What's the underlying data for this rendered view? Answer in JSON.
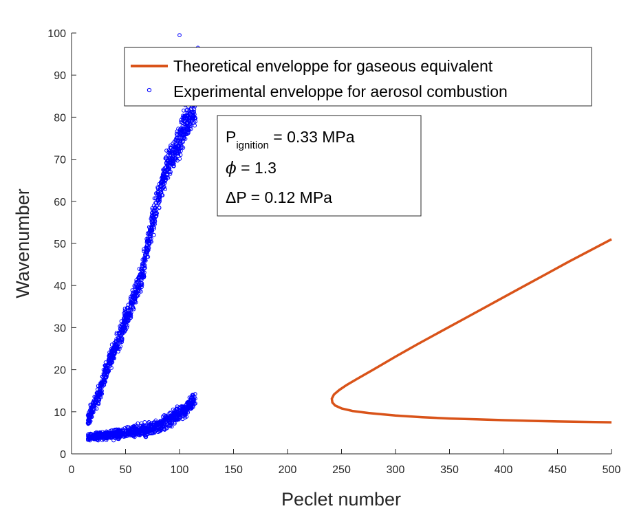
{
  "chart_data": {
    "type": "scatter",
    "xlabel": "Peclet number",
    "ylabel": "Wavenumber",
    "xlim": [
      0,
      500
    ],
    "ylim": [
      0,
      100
    ],
    "xticks": [
      "0",
      "50",
      "100",
      "150",
      "200",
      "250",
      "300",
      "350",
      "400",
      "450",
      "500"
    ],
    "yticks": [
      "0",
      "10",
      "20",
      "30",
      "40",
      "50",
      "60",
      "70",
      "80",
      "90",
      "100"
    ],
    "grid": false,
    "legend_position": "top",
    "colors": {
      "theoretical": "#d95319",
      "experimental": "#0000ff",
      "axis": "#262626"
    },
    "series": [
      {
        "name": "Theoretical enveloppe for gaseous equivalent",
        "kind": "line",
        "points": [
          [
            500,
            51
          ],
          [
            480,
            48.3
          ],
          [
            460,
            45.6
          ],
          [
            440,
            42.8
          ],
          [
            420,
            40.0
          ],
          [
            400,
            37.2
          ],
          [
            380,
            34.4
          ],
          [
            360,
            31.6
          ],
          [
            340,
            28.8
          ],
          [
            320,
            26.0
          ],
          [
            300,
            23.1
          ],
          [
            280,
            20.1
          ],
          [
            265,
            17.9
          ],
          [
            255,
            16.4
          ],
          [
            248,
            15.2
          ],
          [
            243,
            14.1
          ],
          [
            241,
            13.1
          ],
          [
            241.5,
            12.2
          ],
          [
            244,
            11.5
          ],
          [
            250,
            10.8
          ],
          [
            260,
            10.2
          ],
          [
            275,
            9.7
          ],
          [
            300,
            9.1
          ],
          [
            325,
            8.7
          ],
          [
            350,
            8.4
          ],
          [
            375,
            8.2
          ],
          [
            400,
            8.0
          ],
          [
            425,
            7.85
          ],
          [
            450,
            7.7
          ],
          [
            475,
            7.6
          ],
          [
            500,
            7.5
          ]
        ]
      },
      {
        "name": "Experimental enveloppe for aerosol combustion",
        "kind": "scatter",
        "clusters": [
          {
            "x_range": [
              15,
              115
            ],
            "trend": [
              [
                15,
                4.0
              ],
              [
                40,
                4.5
              ],
              [
                60,
                5.5
              ],
              [
                75,
                6.0
              ],
              [
                90,
                8.0
              ],
              [
                105,
                10.5
              ],
              [
                115,
                13.0
              ]
            ],
            "spread": 2.0,
            "count": 900
          },
          {
            "x_range": [
              15,
              115
            ],
            "trend": [
              [
                15,
                8
              ],
              [
                25,
                14
              ],
              [
                35,
                22
              ],
              [
                45,
                28
              ],
              [
                55,
                35
              ],
              [
                65,
                42
              ],
              [
                72,
                52
              ],
              [
                80,
                60
              ],
              [
                88,
                68
              ],
              [
                95,
                72
              ],
              [
                100,
                75
              ],
              [
                107,
                79
              ],
              [
                115,
                82
              ]
            ],
            "spread": 4.5,
            "count": 1100
          }
        ],
        "outliers": [
          [
            100,
            99.5
          ],
          [
            117,
            96.5
          ],
          [
            116,
            94.8
          ]
        ]
      }
    ],
    "annotation": {
      "line1_main": "P",
      "line1_sub": "ignition",
      "line1_rest": " = 0.33 MPa",
      "line2_symbol": "ϕ",
      "line2_rest": " = 1.3",
      "line3": "ΔP = 0.12 MPa"
    }
  }
}
